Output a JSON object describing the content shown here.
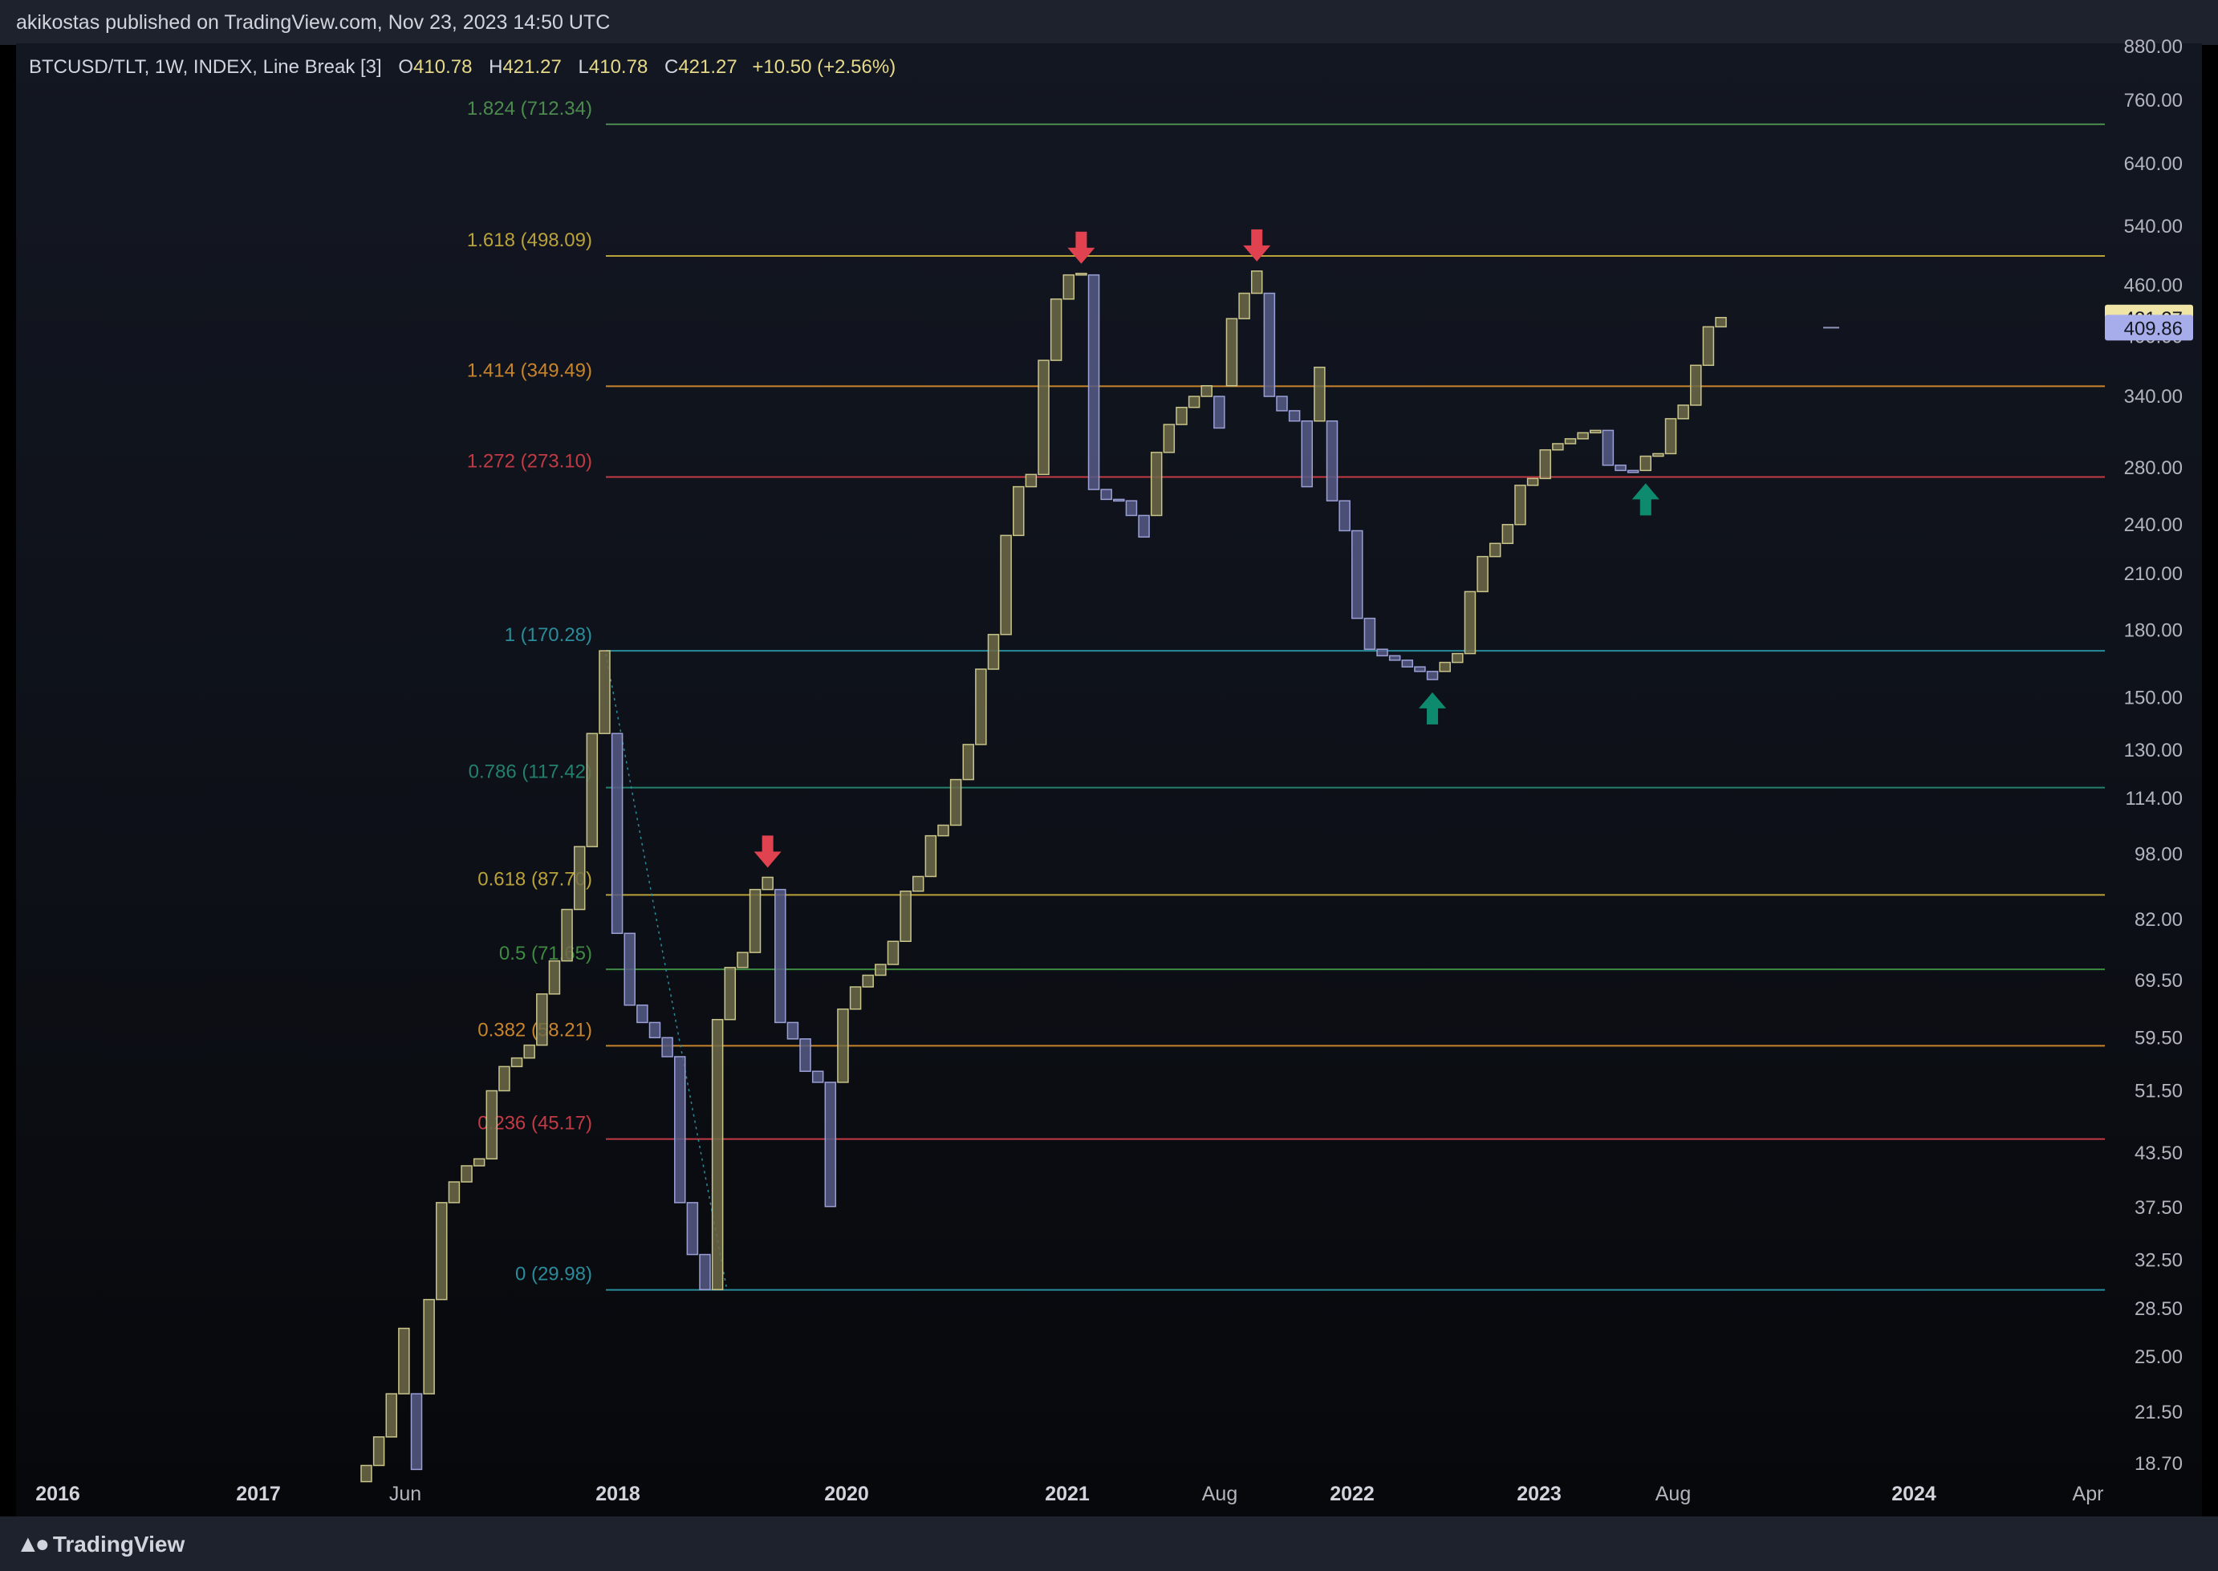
{
  "header": {
    "publisher": "akikostas published on TradingView.com, Nov 23, 2023 14:50 UTC"
  },
  "legend": {
    "symbol": "BTCUSD/TLT, 1W, INDEX, Line Break [3]",
    "open_label": "O",
    "open": "410.78",
    "high_label": "H",
    "high": "421.27",
    "low_label": "L",
    "low": "410.78",
    "close_label": "C",
    "close": "421.27",
    "change": "+10.50 (+2.56%)"
  },
  "footer": {
    "brand": "TradingView",
    "logo_icon": "tradingview-logo-icon"
  },
  "colors": {
    "up": "#c8c48a",
    "down": "#9aa0d6",
    "sell_arrow": "#e0424f",
    "buy_arrow": "#0e8a6e"
  },
  "chart_data": {
    "type": "line-break",
    "y_scale": "log",
    "y_ticks": [
      "880.00",
      "760.00",
      "640.00",
      "540.00",
      "460.00",
      "400.00",
      "340.00",
      "280.00",
      "240.00",
      "210.00",
      "180.00",
      "150.00",
      "130.00",
      "114.00",
      "98.00",
      "82.00",
      "69.50",
      "59.50",
      "51.50",
      "43.50",
      "37.50",
      "32.50",
      "28.50",
      "25.00",
      "21.50",
      "18.70"
    ],
    "x_ticks": [
      "2016",
      "2017",
      "Jun",
      "2018",
      "2020",
      "2021",
      "Aug",
      "2022",
      "2023",
      "Aug",
      "2024",
      "Apr"
    ],
    "price_labels": [
      {
        "value": "421.27",
        "color": "#efe5a6"
      },
      {
        "value": "409.86",
        "color": "#a7aceb"
      }
    ],
    "fib_levels": [
      {
        "label": "1.824 (712.34)",
        "price": 712.34,
        "color": "#4c8a4e"
      },
      {
        "label": "1.618 (498.09)",
        "price": 498.09,
        "color": "#b9a23a"
      },
      {
        "label": "1.414 (349.49)",
        "price": 349.49,
        "color": "#c8842a"
      },
      {
        "label": "1.272 (273.10)",
        "price": 273.1,
        "color": "#c23a44"
      },
      {
        "label": "1 (170.28)",
        "price": 170.28,
        "color": "#2a8c9a"
      },
      {
        "label": "0.786 (117.42)",
        "price": 117.42,
        "color": "#23806a"
      },
      {
        "label": "0.618 (87.70)",
        "price": 87.7,
        "color": "#b9a23a"
      },
      {
        "label": "0.5 (71.65)",
        "price": 71.65,
        "color": "#3f8a43"
      },
      {
        "label": "0.382 (58.21)",
        "price": 58.21,
        "color": "#c8842a"
      },
      {
        "label": "0.236 (45.17)",
        "price": 45.17,
        "color": "#c23a44"
      },
      {
        "label": "0 (29.98)",
        "price": 29.98,
        "color": "#2a8c9a"
      }
    ],
    "bricks": [
      {
        "open": 17.8,
        "close": 18.6
      },
      {
        "open": 18.6,
        "close": 20.1
      },
      {
        "open": 20.1,
        "close": 22.6
      },
      {
        "open": 22.6,
        "close": 27.0
      },
      {
        "open": 22.6,
        "close": 18.4
      },
      {
        "open": 22.6,
        "close": 29.2
      },
      {
        "open": 29.2,
        "close": 38.0
      },
      {
        "open": 38.0,
        "close": 40.2
      },
      {
        "open": 40.2,
        "close": 42.0
      },
      {
        "open": 42.0,
        "close": 42.8
      },
      {
        "open": 42.8,
        "close": 51.5
      },
      {
        "open": 51.5,
        "close": 55.0
      },
      {
        "open": 55.0,
        "close": 56.3
      },
      {
        "open": 56.3,
        "close": 58.3
      },
      {
        "open": 58.3,
        "close": 67.0
      },
      {
        "open": 67.0,
        "close": 73.3
      },
      {
        "open": 73.3,
        "close": 84.3
      },
      {
        "open": 84.3,
        "close": 100.0
      },
      {
        "open": 100.0,
        "close": 136.0
      },
      {
        "open": 136.0,
        "close": 170.3
      },
      {
        "open": 136.0,
        "close": 79.0
      },
      {
        "open": 79.0,
        "close": 65.0
      },
      {
        "open": 65.0,
        "close": 62.0
      },
      {
        "open": 62.0,
        "close": 59.5
      },
      {
        "open": 59.5,
        "close": 56.5
      },
      {
        "open": 56.5,
        "close": 38.0
      },
      {
        "open": 38.0,
        "close": 33.0
      },
      {
        "open": 33.0,
        "close": 30.0
      },
      {
        "open": 30.0,
        "close": 62.5
      },
      {
        "open": 62.5,
        "close": 72.0
      },
      {
        "open": 72.0,
        "close": 75.0
      },
      {
        "open": 75.0,
        "close": 89.0
      },
      {
        "open": 89.0,
        "close": 92.0
      },
      {
        "open": 89.0,
        "close": 62.0
      },
      {
        "open": 62.0,
        "close": 59.3
      },
      {
        "open": 59.3,
        "close": 54.3
      },
      {
        "open": 54.3,
        "close": 52.7
      },
      {
        "open": 52.7,
        "close": 37.6
      },
      {
        "open": 52.7,
        "close": 64.3
      },
      {
        "open": 64.3,
        "close": 68.3
      },
      {
        "open": 68.3,
        "close": 70.5
      },
      {
        "open": 70.5,
        "close": 72.6
      },
      {
        "open": 72.6,
        "close": 77.3
      },
      {
        "open": 77.3,
        "close": 88.6
      },
      {
        "open": 88.6,
        "close": 92.2
      },
      {
        "open": 92.2,
        "close": 103.0
      },
      {
        "open": 103.0,
        "close": 106.0
      },
      {
        "open": 106.0,
        "close": 120.0
      },
      {
        "open": 120.0,
        "close": 132.0
      },
      {
        "open": 132.0,
        "close": 162.0
      },
      {
        "open": 162.0,
        "close": 178.0
      },
      {
        "open": 178.0,
        "close": 233.0
      },
      {
        "open": 233.0,
        "close": 266.0
      },
      {
        "open": 266.0,
        "close": 275.0
      },
      {
        "open": 275.0,
        "close": 375.0
      },
      {
        "open": 375.0,
        "close": 443.0
      },
      {
        "open": 443.0,
        "close": 473.0
      },
      {
        "open": 473.0,
        "close": 475.0
      },
      {
        "open": 473.0,
        "close": 264.0
      },
      {
        "open": 264.0,
        "close": 257.0
      },
      {
        "open": 257.0,
        "close": 256.0
      },
      {
        "open": 256.0,
        "close": 246.0
      },
      {
        "open": 246.0,
        "close": 232.0
      },
      {
        "open": 246.0,
        "close": 292.0
      },
      {
        "open": 292.0,
        "close": 315.0
      },
      {
        "open": 315.0,
        "close": 330.0
      },
      {
        "open": 330.0,
        "close": 340.0
      },
      {
        "open": 340.0,
        "close": 350.0
      },
      {
        "open": 340.0,
        "close": 312.0
      },
      {
        "open": 350.0,
        "close": 420.0
      },
      {
        "open": 420.0,
        "close": 450.0
      },
      {
        "open": 450.0,
        "close": 478.0
      },
      {
        "open": 450.0,
        "close": 340.0
      },
      {
        "open": 340.0,
        "close": 327.0
      },
      {
        "open": 327.0,
        "close": 318.0
      },
      {
        "open": 318.0,
        "close": 266.0
      },
      {
        "open": 318.0,
        "close": 368.0
      },
      {
        "open": 318.0,
        "close": 256.0
      },
      {
        "open": 256.0,
        "close": 236.0
      },
      {
        "open": 236.0,
        "close": 186.0
      },
      {
        "open": 186.0,
        "close": 171.0
      },
      {
        "open": 171.0,
        "close": 168.0
      },
      {
        "open": 168.0,
        "close": 166.0
      },
      {
        "open": 166.0,
        "close": 163.0
      },
      {
        "open": 163.0,
        "close": 161.0
      },
      {
        "open": 161.0,
        "close": 157.5
      },
      {
        "open": 161.0,
        "close": 165.0
      },
      {
        "open": 165.0,
        "close": 169.0
      },
      {
        "open": 169.0,
        "close": 200.0
      },
      {
        "open": 200.0,
        "close": 220.0
      },
      {
        "open": 220.0,
        "close": 228.0
      },
      {
        "open": 228.0,
        "close": 240.0
      },
      {
        "open": 240.0,
        "close": 267.0
      },
      {
        "open": 267.0,
        "close": 272.0
      },
      {
        "open": 272.0,
        "close": 294.0
      },
      {
        "open": 294.0,
        "close": 299.0
      },
      {
        "open": 299.0,
        "close": 303.0
      },
      {
        "open": 303.0,
        "close": 308.0
      },
      {
        "open": 308.0,
        "close": 310.0
      },
      {
        "open": 310.0,
        "close": 282.0
      },
      {
        "open": 282.0,
        "close": 278.0
      },
      {
        "open": 278.0,
        "close": 276.5
      },
      {
        "open": 278.0,
        "close": 289.0
      },
      {
        "open": 289.0,
        "close": 291.0
      },
      {
        "open": 291.0,
        "close": 320.0
      },
      {
        "open": 320.0,
        "close": 332.0
      },
      {
        "open": 332.0,
        "close": 370.0
      },
      {
        "open": 370.0,
        "close": 410.8
      },
      {
        "open": 410.8,
        "close": 421.3
      }
    ],
    "markers": [
      {
        "kind": "sell",
        "brick": 32
      },
      {
        "kind": "sell",
        "brick": 57
      },
      {
        "kind": "sell",
        "brick": 71
      },
      {
        "kind": "buy",
        "brick": 85
      },
      {
        "kind": "buy",
        "brick": 102
      }
    ]
  }
}
